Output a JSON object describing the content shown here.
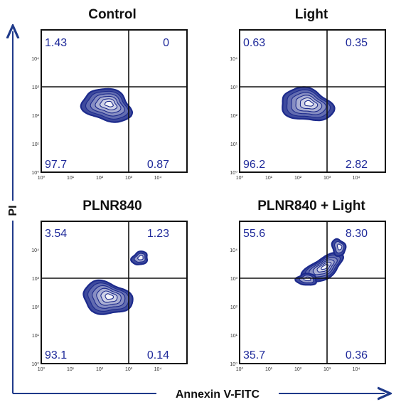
{
  "colors": {
    "contour_fill": "#1c2a8c",
    "contour_light": "#ffffff",
    "axis_arrow": "#1f3a8a",
    "quadrant_text": "#1f2a9a",
    "panel_border": "#111111"
  },
  "axes": {
    "x_label": "Annexin V-FITC",
    "y_label": "PI",
    "tick_labels": [
      "10⁰",
      "10¹",
      "10²",
      "10³",
      "10⁴"
    ]
  },
  "chart_data": [
    {
      "type": "contour",
      "title": "Control",
      "xscale": "log",
      "yscale": "log",
      "xlim": [
        1,
        100000
      ],
      "ylim": [
        1,
        100000
      ],
      "gate": {
        "x": 1000,
        "y": 1000
      },
      "quadrants": {
        "upper_left": "1.43",
        "upper_right": "0",
        "lower_left": "97.7",
        "lower_right": "0.87"
      },
      "populations": [
        {
          "x": 180,
          "y": 220,
          "spread_x": 0.85,
          "spread_y": 0.55,
          "tilt": -0.25,
          "density": 1.0
        }
      ]
    },
    {
      "type": "contour",
      "title": "Light",
      "xscale": "log",
      "yscale": "log",
      "xlim": [
        1,
        100000
      ],
      "ylim": [
        1,
        100000
      ],
      "gate": {
        "x": 1000,
        "y": 1000
      },
      "quadrants": {
        "upper_left": "0.63",
        "upper_right": "0.35",
        "lower_left": "96.2",
        "lower_right": "2.82"
      },
      "populations": [
        {
          "x": 200,
          "y": 230,
          "spread_x": 0.9,
          "spread_y": 0.55,
          "tilt": -0.2,
          "density": 1.0
        }
      ]
    },
    {
      "type": "contour",
      "title": "PLNR840",
      "xscale": "log",
      "yscale": "log",
      "xlim": [
        1,
        100000
      ],
      "ylim": [
        1,
        100000
      ],
      "gate": {
        "x": 1000,
        "y": 1000
      },
      "quadrants": {
        "upper_left": "3.54",
        "upper_right": "1.23",
        "lower_left": "93.1",
        "lower_right": "0.14"
      },
      "populations": [
        {
          "x": 180,
          "y": 200,
          "spread_x": 0.85,
          "spread_y": 0.55,
          "tilt": -0.2,
          "density": 1.0
        },
        {
          "x": 2400,
          "y": 5000,
          "spread_x": 0.28,
          "spread_y": 0.22,
          "tilt": 0.4,
          "density": 0.4
        }
      ]
    },
    {
      "type": "contour",
      "title": "PLNR840 + Light",
      "xscale": "log",
      "yscale": "log",
      "xlim": [
        1,
        100000
      ],
      "ylim": [
        1,
        100000
      ],
      "gate": {
        "x": 1000,
        "y": 1000
      },
      "quadrants": {
        "upper_left": "55.6",
        "upper_right": "8.30",
        "lower_left": "35.7",
        "lower_right": "0.36"
      },
      "populations": [
        {
          "x": 700,
          "y": 2200,
          "spread_x": 0.8,
          "spread_y": 0.35,
          "tilt": 0.55,
          "density": 1.0
        },
        {
          "x": 200,
          "y": 900,
          "spread_x": 0.35,
          "spread_y": 0.2,
          "tilt": 0.0,
          "density": 0.55
        },
        {
          "x": 2500,
          "y": 12000,
          "spread_x": 0.22,
          "spread_y": 0.3,
          "tilt": 0.3,
          "density": 0.45
        }
      ]
    }
  ]
}
